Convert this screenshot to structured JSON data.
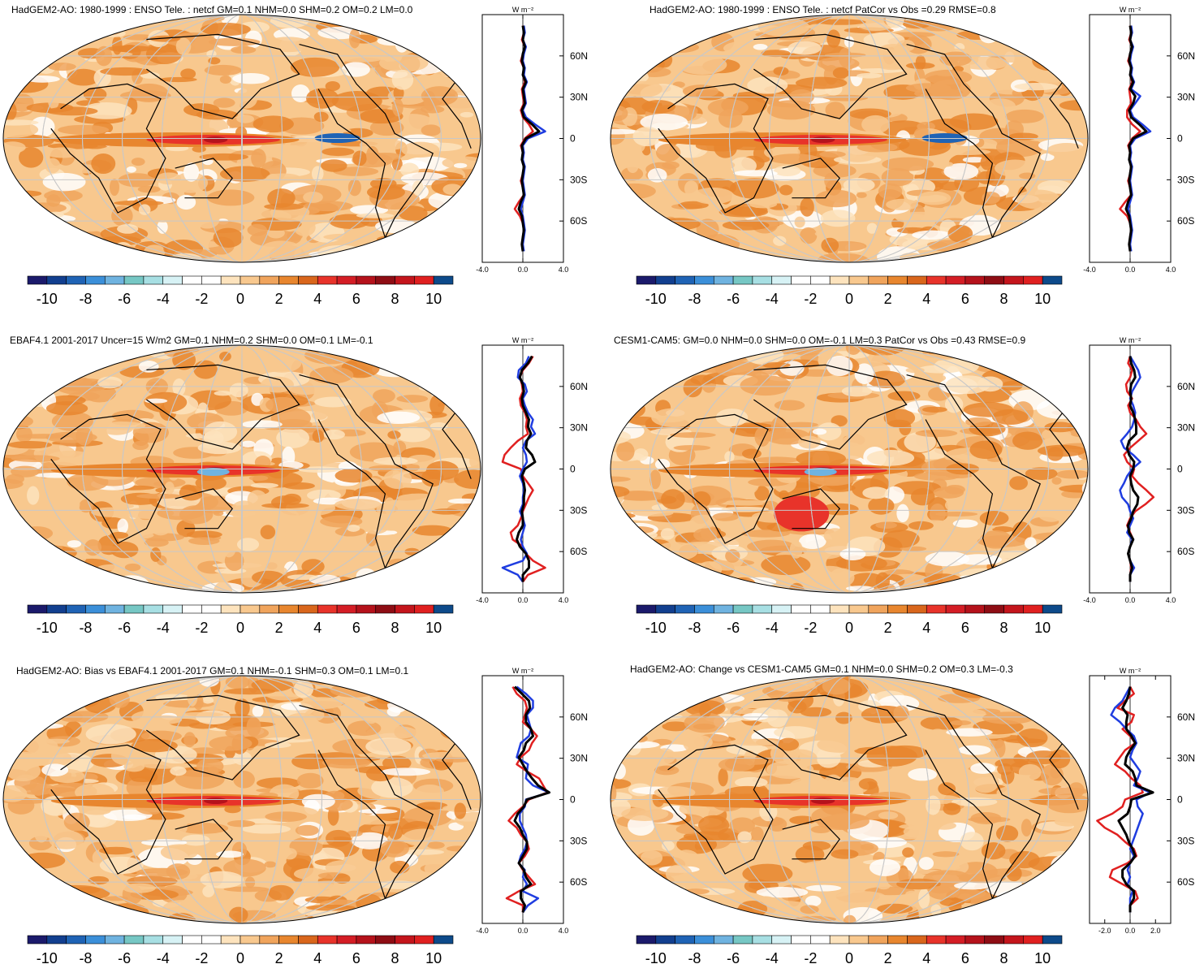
{
  "colors": {
    "land_line": "#000000",
    "levels": [
      "#1b1a6b",
      "#123f8f",
      "#1f63b5",
      "#3b8fd9",
      "#6fb3e0",
      "#76c7c4",
      "#a7dfe3",
      "#d7f2f5",
      "#ffffff",
      "#ffffff",
      "#fde3bd",
      "#f8c88e",
      "#f0a45c",
      "#e8862e",
      "#d9661c",
      "#e8332a",
      "#d41d25",
      "#b5121b",
      "#8e0d14",
      "#c4151c",
      "#e02020",
      "#0d4a8a"
    ],
    "red": "#e02020",
    "blue": "#1f3de0",
    "black": "#000000"
  },
  "colorbar": {
    "labels": [
      "-10",
      "-8",
      "-6",
      "-4",
      "-2",
      "0",
      "2",
      "4",
      "6",
      "8",
      "10"
    ]
  },
  "chart_data": [
    {
      "type": "heatmap",
      "title": "HadGEM2-AO: 1980-1999 : ENSO Tele. : netcf GM=0.1 NHM=0.0 SHM=0.2 OM=0.2 LM=0.0",
      "zonal_unit": "W m⁻²",
      "zonal_xticks": [
        "-4.0",
        "0.0",
        "4.0"
      ],
      "zonal_xlim": [
        -4,
        4
      ],
      "lat_ticks": [
        "60N",
        "30N",
        "0",
        "30S",
        "60S"
      ],
      "zonal_series": {
        "red": [
          0.0,
          0.1,
          -0.1,
          0.2,
          0.0,
          -0.2,
          0.1,
          0.0,
          0.2,
          -0.1,
          0.0,
          0.1,
          -0.2,
          0.0,
          0.6,
          1.0,
          0.2,
          -0.2,
          0.0,
          -0.1,
          0.1,
          0.0,
          -0.2,
          0.0,
          0.1,
          -0.4,
          -0.8,
          -0.3,
          0.0,
          0.1,
          0.0,
          -0.1,
          0.0
        ],
        "blue": [
          0.1,
          0.2,
          0.0,
          0.3,
          0.1,
          0.0,
          0.2,
          0.1,
          0.4,
          0.1,
          0.2,
          0.3,
          0.0,
          0.3,
          1.2,
          2.2,
          0.5,
          0.0,
          0.1,
          0.0,
          0.2,
          0.1,
          0.0,
          0.1,
          0.2,
          0.0,
          -0.2,
          0.0,
          0.1,
          0.2,
          0.1,
          0.0,
          0.1
        ],
        "black": [
          0.0,
          0.1,
          0.0,
          0.2,
          0.0,
          -0.1,
          0.1,
          0.0,
          0.3,
          0.0,
          0.1,
          0.2,
          -0.1,
          0.1,
          0.9,
          1.6,
          0.3,
          -0.1,
          0.0,
          -0.1,
          0.1,
          0.0,
          -0.1,
          0.0,
          0.1,
          -0.2,
          -0.4,
          -0.1,
          0.0,
          0.1,
          0.0,
          -0.1,
          0.0
        ]
      }
    },
    {
      "type": "heatmap",
      "title": "HadGEM2-AO: 1980-1999 : ENSO Tele. : netcf PatCor vs Obs =0.29 RMSE=0.8",
      "zonal_unit": "W m⁻²",
      "zonal_xticks": [
        "-4.0",
        "0.0",
        "4.0"
      ],
      "zonal_xlim": [
        -4,
        4
      ],
      "lat_ticks": [
        "60N",
        "30N",
        "0",
        "30S",
        "60S"
      ],
      "zonal_series": {
        "red": [
          0.0,
          0.1,
          -0.1,
          0.2,
          0.0,
          -0.2,
          0.1,
          0.0,
          0.2,
          -0.1,
          0.0,
          0.1,
          -0.3,
          -0.3,
          0.2,
          1.0,
          0.2,
          -0.2,
          0.0,
          -0.1,
          0.1,
          0.0,
          -0.2,
          0.0,
          0.1,
          -0.5,
          -1.0,
          -0.3,
          0.0,
          0.1,
          0.0,
          -0.1,
          0.0
        ],
        "blue": [
          0.1,
          0.2,
          0.0,
          0.3,
          0.1,
          0.0,
          0.2,
          0.1,
          0.4,
          0.1,
          1.0,
          0.5,
          0.0,
          0.3,
          1.2,
          2.0,
          0.5,
          0.0,
          0.1,
          0.0,
          0.2,
          0.1,
          0.0,
          0.1,
          0.2,
          0.0,
          -0.2,
          0.0,
          0.1,
          0.2,
          0.1,
          0.0,
          0.1
        ],
        "black": [
          0.0,
          0.1,
          0.0,
          0.2,
          0.0,
          -0.1,
          0.1,
          0.0,
          0.3,
          0.0,
          0.5,
          0.3,
          -0.1,
          0.1,
          0.9,
          1.6,
          0.3,
          -0.1,
          0.0,
          -0.1,
          0.1,
          0.0,
          -0.1,
          0.0,
          0.1,
          -0.2,
          -0.4,
          -0.1,
          0.0,
          0.1,
          0.0,
          -0.1,
          0.0
        ]
      }
    },
    {
      "type": "heatmap",
      "title": "EBAF4.1 2001-2017 Uncer=15 W/m2 GM=0.1 NHM=0.2 SHM=0.0 OM=0.1 LM=-0.1",
      "zonal_unit": "W m⁻²",
      "zonal_xticks": [
        "-4.0",
        "0.0",
        "4.0"
      ],
      "zonal_xlim": [
        -4,
        4
      ],
      "lat_ticks": [
        "60N",
        "30N",
        "0",
        "30S",
        "60S"
      ],
      "zonal_series": {
        "red": [
          1.0,
          0.6,
          0.0,
          -0.3,
          -0.1,
          0.0,
          -0.3,
          -0.2,
          0.2,
          0.4,
          0.3,
          0.5,
          -0.5,
          -1.2,
          -1.8,
          -2.0,
          -0.2,
          0.0,
          0.5,
          1.0,
          0.6,
          0.3,
          0.0,
          -0.2,
          -0.5,
          -1.2,
          -1.0,
          0.0,
          0.3,
          1.0,
          2.2,
          0.5,
          0.0
        ],
        "blue": [
          0.6,
          0.3,
          -0.4,
          -0.5,
          0.2,
          0.4,
          0.0,
          0.2,
          0.5,
          1.0,
          0.8,
          1.2,
          0.3,
          0.0,
          0.3,
          0.4,
          0.0,
          -0.3,
          0.0,
          0.1,
          0.0,
          0.0,
          -0.3,
          0.0,
          0.2,
          0.0,
          -0.2,
          0.0,
          0.4,
          0.0,
          -2.0,
          -0.5,
          0.0
        ],
        "black": [
          0.9,
          0.5,
          -0.1,
          -0.3,
          0.0,
          0.1,
          -0.1,
          0.0,
          0.3,
          0.6,
          0.5,
          0.8,
          0.4,
          0.3,
          0.9,
          1.2,
          0.2,
          -0.1,
          0.1,
          0.2,
          0.1,
          0.1,
          -0.1,
          0.0,
          0.0,
          -0.4,
          -0.6,
          -0.3,
          0.3,
          0.6,
          0.6,
          0.0,
          0.0
        ]
      }
    },
    {
      "type": "heatmap",
      "title": "CESM1-CAM5: GM=0.0 NHM=0.0 SHM=0.0 OM=-0.1 LM=0.3 PatCor vs Obs =0.43 RMSE=0.9",
      "zonal_unit": "W m⁻²",
      "zonal_xticks": [
        "-4.0",
        "0.0",
        "4.0"
      ],
      "zonal_xlim": [
        -4,
        4
      ],
      "lat_ticks": [
        "60N",
        "30N",
        "0",
        "30S",
        "60S"
      ],
      "zonal_series": {
        "red": [
          0.0,
          -0.2,
          0.2,
          0.0,
          -0.4,
          -0.3,
          0.2,
          -0.2,
          0.0,
          0.6,
          1.0,
          1.6,
          0.8,
          0.0,
          -0.6,
          -0.3,
          0.4,
          0.2,
          0.8,
          1.6,
          2.3,
          1.5,
          0.5,
          0.0,
          -0.3,
          0.0,
          0.3,
          0.0,
          -0.2,
          0.0,
          0.1,
          0.0,
          0.0
        ],
        "blue": [
          0.0,
          0.4,
          0.8,
          1.0,
          0.6,
          0.2,
          0.0,
          0.3,
          0.5,
          0.4,
          0.2,
          -0.3,
          -0.9,
          -0.6,
          0.3,
          1.0,
          0.2,
          -0.3,
          -0.6,
          -1.0,
          -0.8,
          -0.2,
          0.0,
          0.3,
          0.0,
          -0.3,
          0.2,
          0.0,
          -0.2,
          0.0,
          0.4,
          0.0,
          0.0
        ],
        "black": [
          0.0,
          0.1,
          0.4,
          0.5,
          0.1,
          0.0,
          0.1,
          0.0,
          0.3,
          0.5,
          0.6,
          0.6,
          -0.1,
          -0.3,
          -0.1,
          0.4,
          0.3,
          0.0,
          0.1,
          0.3,
          0.8,
          0.7,
          0.3,
          0.1,
          -0.2,
          -0.1,
          0.3,
          0.0,
          -0.2,
          0.0,
          0.2,
          0.0,
          0.0
        ]
      }
    },
    {
      "type": "heatmap",
      "title": "HadGEM2-AO: Bias vs EBAF4.1 2001-2017 GM=0.1 NHM=-0.1 SHM=0.3 OM=0.1 LM=0.1",
      "zonal_unit": "W m⁻²",
      "zonal_xticks": [
        "-4.0",
        "0.0",
        "4.0"
      ],
      "zonal_xlim": [
        -4,
        4
      ],
      "lat_ticks": [
        "60N",
        "30N",
        "0",
        "30S",
        "60S"
      ],
      "zonal_series": {
        "red": [
          -1.0,
          -0.6,
          0.2,
          0.4,
          0.2,
          0.0,
          0.8,
          1.4,
          0.9,
          0.6,
          -0.2,
          -0.6,
          0.4,
          1.6,
          2.0,
          2.4,
          0.6,
          0.0,
          -0.8,
          -1.4,
          -0.6,
          -0.2,
          0.4,
          0.6,
          0.2,
          -0.4,
          0.0,
          0.6,
          1.2,
          -0.4,
          -1.6,
          0.0,
          0.0
        ],
        "blue": [
          -0.6,
          0.3,
          1.0,
          1.0,
          0.4,
          0.6,
          0.8,
          0.6,
          -0.2,
          -0.4,
          -0.6,
          0.5,
          0.4,
          0.3,
          1.0,
          2.6,
          0.3,
          0.2,
          -0.3,
          -0.3,
          0.0,
          0.3,
          0.4,
          0.2,
          -0.2,
          -0.4,
          0.2,
          0.0,
          0.4,
          0.0,
          1.5,
          0.5,
          0.0
        ],
        "black": [
          -0.8,
          -0.1,
          0.6,
          0.7,
          0.3,
          0.3,
          0.8,
          1.0,
          0.3,
          0.1,
          -0.4,
          0.0,
          0.4,
          0.9,
          1.5,
          2.6,
          0.4,
          0.1,
          -0.5,
          -0.8,
          -0.3,
          0.0,
          0.4,
          0.4,
          0.0,
          -0.4,
          0.1,
          0.3,
          0.8,
          -0.2,
          -0.2,
          0.2,
          0.0
        ]
      }
    },
    {
      "type": "heatmap",
      "title": "HadGEM2-AO: Change vs CESM1-CAM5 GM=0.1 NHM=0.0 SHM=0.2 OM=0.3 LM=-0.3",
      "zonal_unit": "W m⁻²",
      "zonal_xticks": [
        "-2.0",
        "0.0",
        "2.0"
      ],
      "zonal_xlim": [
        -3.2,
        3.2
      ],
      "lat_ticks": [
        "60N",
        "30N",
        "0",
        "30S",
        "60S"
      ],
      "zonal_series": {
        "red": [
          0.0,
          0.3,
          -0.4,
          -1.0,
          0.3,
          0.1,
          -0.6,
          0.0,
          0.4,
          -0.4,
          -0.8,
          -1.2,
          -0.4,
          0.1,
          0.8,
          1.0,
          -0.4,
          -0.6,
          -1.4,
          -2.6,
          -2.0,
          -1.0,
          -0.4,
          0.3,
          0.5,
          -0.2,
          -1.4,
          -1.6,
          -0.6,
          0.4,
          0.6,
          0.0,
          0.0
        ],
        "blue": [
          0.0,
          -0.3,
          -0.6,
          -1.2,
          -1.5,
          -0.8,
          -0.3,
          0.3,
          0.5,
          0.2,
          0.0,
          0.4,
          0.8,
          0.6,
          0.3,
          1.6,
          0.5,
          0.6,
          1.0,
          0.8,
          0.6,
          0.4,
          0.2,
          0.0,
          0.3,
          0.0,
          -0.2,
          0.0,
          -0.2,
          0.2,
          0.0,
          0.0,
          0.0
        ],
        "black": [
          0.0,
          -0.1,
          -0.3,
          -0.6,
          -0.2,
          -0.3,
          -0.3,
          0.1,
          0.4,
          0.0,
          -0.3,
          -0.4,
          0.2,
          0.4,
          0.5,
          1.8,
          0.1,
          0.0,
          -0.2,
          -0.9,
          -0.6,
          -0.3,
          -0.1,
          0.2,
          0.4,
          0.0,
          -0.6,
          -0.6,
          -0.3,
          0.3,
          0.3,
          0.0,
          0.0
        ]
      }
    }
  ]
}
